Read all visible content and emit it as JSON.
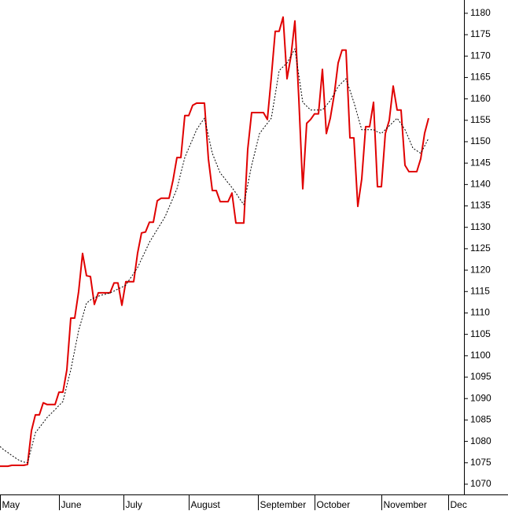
{
  "chart_data": {
    "type": "line",
    "categories": [
      null,
      null,
      null,
      null,
      null,
      null,
      null,
      null,
      null,
      null,
      null,
      null,
      null,
      null,
      null,
      null,
      null,
      null,
      null,
      null,
      null,
      null,
      null,
      null,
      null,
      null,
      null,
      null,
      null,
      null,
      null,
      null,
      null,
      null,
      null,
      null,
      null,
      null,
      null,
      null,
      null,
      null,
      null,
      null,
      null,
      null,
      null,
      null,
      null,
      null,
      null,
      null,
      null,
      null,
      null,
      null,
      null,
      null,
      null,
      null,
      null,
      null,
      null,
      null,
      null,
      null,
      null,
      null,
      null,
      null,
      null,
      null,
      null,
      null,
      null,
      null,
      null,
      null,
      null,
      null,
      null,
      null,
      null,
      null,
      null,
      null,
      null,
      null,
      null,
      null,
      null,
      null,
      null,
      null,
      null,
      null,
      null,
      null,
      null,
      null,
      null,
      null,
      null,
      null,
      null,
      null,
      null,
      null,
      null,
      null
    ],
    "series": [
      {
        "color": "#e00000",
        "style": "solid",
        "values": [
          1074.2,
          1074.2,
          1074.2,
          1074.4,
          1074.4,
          1074.4,
          1074.4,
          1074.6,
          1082.5,
          1086.2,
          1086.2,
          1089,
          1088.6,
          1088.6,
          1088.6,
          1091.5,
          1091.5,
          1096.7,
          1108.8,
          1108.8,
          1115,
          1123.9,
          1118.7,
          1118.5,
          1112,
          1114.7,
          1114.7,
          1114.7,
          1114.7,
          1117,
          1117,
          1111.8,
          1117.3,
          1117.3,
          1117.3,
          1124,
          1128.7,
          1128.9,
          1131.2,
          1131.2,
          1136.2,
          1136.8,
          1136.8,
          1136.8,
          1141,
          1146.3,
          1146.3,
          1156.1,
          1156.1,
          1158.5,
          1159,
          1159,
          1159,
          1146,
          1138.6,
          1138.6,
          1136,
          1136,
          1136,
          1138,
          1131,
          1131,
          1131,
          1148.2,
          1156.8,
          1156.8,
          1156.8,
          1156.8,
          1155.2,
          1165,
          1175.8,
          1175.8,
          1179.1,
          1164.7,
          1170,
          1178.2,
          1160,
          1139,
          1154.3,
          1155.2,
          1156.5,
          1156.5,
          1166.9,
          1151.9,
          1155.5,
          1161,
          1168.4,
          1171.4,
          1171.4,
          1150.9,
          1150.9,
          1134.9,
          1141.3,
          1153.5,
          1153.5,
          1159.2,
          1139.5,
          1139.5,
          1151.9,
          1155,
          1163,
          1157.4,
          1157.4,
          1144.5,
          1143,
          1143,
          1143,
          1146,
          1152,
          1155.5
        ]
      },
      {
        "color": "#000000",
        "style": "dotted",
        "values": [
          1078.8,
          1078,
          1077.4,
          1076.7,
          1076.1,
          1075.5,
          1075.2,
          1075,
          1078.5,
          1082,
          1083.2,
          1084.4,
          1085.6,
          1086.5,
          1087.4,
          1088.4,
          1089.3,
          1093,
          1096.7,
          1101.3,
          1105.9,
          1109.1,
          1112.3,
          1113,
          1113.6,
          1113.9,
          1114.2,
          1114.4,
          1114.7,
          1115.1,
          1115.6,
          1116,
          1116.5,
          1117.9,
          1119.2,
          1120.6,
          1122.6,
          1124.5,
          1126.5,
          1128,
          1129.5,
          1131,
          1132.5,
          1134.7,
          1136.8,
          1139,
          1142.7,
          1146.3,
          1148.5,
          1150.6,
          1152.8,
          1154.2,
          1155.5,
          1151.4,
          1147.3,
          1145,
          1142.7,
          1141.6,
          1140.4,
          1139.3,
          1138,
          1136.6,
          1135.3,
          1139.9,
          1144.5,
          1148.2,
          1151.9,
          1153.1,
          1154.3,
          1155.5,
          1161,
          1166.6,
          1167.5,
          1168.4,
          1170,
          1171.7,
          1165.5,
          1159.2,
          1158.3,
          1157.4,
          1157.4,
          1157.4,
          1157.4,
          1158.5,
          1159.6,
          1161.2,
          1162.9,
          1163.8,
          1164.7,
          1162,
          1159.2,
          1156,
          1152.8,
          1152.8,
          1152.8,
          1152.8,
          1152.3,
          1151.9,
          1152.8,
          1153.7,
          1154.6,
          1155.5,
          1154.2,
          1152.8,
          1150.7,
          1148.5,
          1147.9,
          1147.3,
          1149,
          1150.8
        ]
      }
    ],
    "xlim": [
      0,
      118
    ],
    "xticks": [
      {
        "value": 0,
        "label": "May"
      },
      {
        "value": 15,
        "label": "June"
      },
      {
        "value": 31.4,
        "label": "July"
      },
      {
        "value": 48,
        "label": "August"
      },
      {
        "value": 65.6,
        "label": "September"
      },
      {
        "value": 80,
        "label": "October"
      },
      {
        "value": 97,
        "label": "November"
      },
      {
        "value": 114,
        "label": "Dec"
      }
    ],
    "ylim": [
      1067.6,
      1183.1
    ],
    "yticks": [
      1070,
      1075,
      1080,
      1085,
      1090,
      1095,
      1100,
      1105,
      1110,
      1115,
      1120,
      1125,
      1130,
      1135,
      1140,
      1145,
      1150,
      1155,
      1160,
      1165,
      1170,
      1175,
      1180
    ],
    "y_axis_side": "right"
  }
}
